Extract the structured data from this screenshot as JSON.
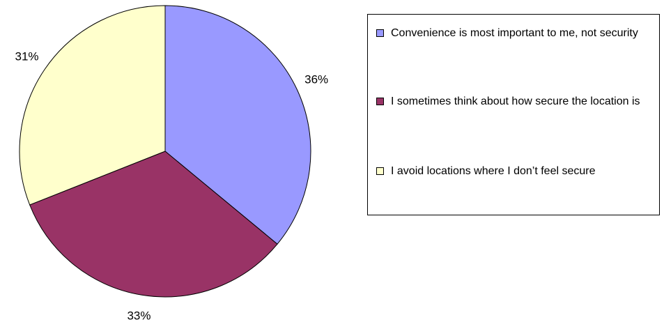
{
  "chart_data": {
    "type": "pie",
    "categories": [
      "Convenience is most important to me, not security",
      "I sometimes think about how secure the location is",
      "I avoid locations where I don’t feel secure"
    ],
    "values": [
      36,
      33,
      31
    ],
    "value_labels": [
      "36%",
      "33%",
      "31%"
    ],
    "colors": [
      "#9999ff",
      "#993366",
      "#ffffcc"
    ],
    "legend": "right"
  }
}
